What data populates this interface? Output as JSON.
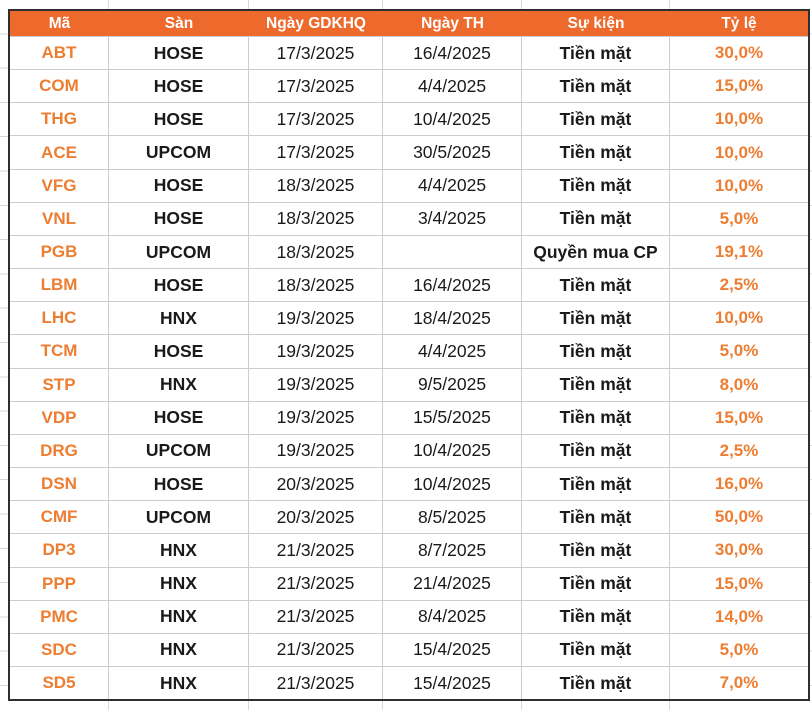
{
  "colors": {
    "header_bg": "#EE6A2C",
    "header_text": "#FFFFFF",
    "accent_text": "#ED7D31",
    "body_text": "#1A1A1A",
    "gridline": "#CCCCCC",
    "table_border": "#2F2F2F"
  },
  "table": {
    "columns": [
      {
        "key": "code",
        "label": "Mã"
      },
      {
        "key": "exchange",
        "label": "Sàn"
      },
      {
        "key": "ex_date",
        "label": "Ngày GDKHQ"
      },
      {
        "key": "exec_date",
        "label": "Ngày TH"
      },
      {
        "key": "event",
        "label": "Sự kiện"
      },
      {
        "key": "ratio",
        "label": "Tỷ lệ"
      }
    ],
    "rows": [
      {
        "code": "ABT",
        "exchange": "HOSE",
        "ex_date": "17/3/2025",
        "exec_date": "16/4/2025",
        "event": "Tiền mặt",
        "ratio": "30,0%"
      },
      {
        "code": "COM",
        "exchange": "HOSE",
        "ex_date": "17/3/2025",
        "exec_date": "4/4/2025",
        "event": "Tiền mặt",
        "ratio": "15,0%"
      },
      {
        "code": "THG",
        "exchange": "HOSE",
        "ex_date": "17/3/2025",
        "exec_date": "10/4/2025",
        "event": "Tiền mặt",
        "ratio": "10,0%"
      },
      {
        "code": "ACE",
        "exchange": "UPCOM",
        "ex_date": "17/3/2025",
        "exec_date": "30/5/2025",
        "event": "Tiền mặt",
        "ratio": "10,0%"
      },
      {
        "code": "VFG",
        "exchange": "HOSE",
        "ex_date": "18/3/2025",
        "exec_date": "4/4/2025",
        "event": "Tiền mặt",
        "ratio": "10,0%"
      },
      {
        "code": "VNL",
        "exchange": "HOSE",
        "ex_date": "18/3/2025",
        "exec_date": "3/4/2025",
        "event": "Tiền mặt",
        "ratio": "5,0%"
      },
      {
        "code": "PGB",
        "exchange": "UPCOM",
        "ex_date": "18/3/2025",
        "exec_date": "",
        "event": "Quyền mua CP",
        "ratio": "19,1%"
      },
      {
        "code": "LBM",
        "exchange": "HOSE",
        "ex_date": "18/3/2025",
        "exec_date": "16/4/2025",
        "event": "Tiền mặt",
        "ratio": "2,5%"
      },
      {
        "code": "LHC",
        "exchange": "HNX",
        "ex_date": "19/3/2025",
        "exec_date": "18/4/2025",
        "event": "Tiền mặt",
        "ratio": "10,0%"
      },
      {
        "code": "TCM",
        "exchange": "HOSE",
        "ex_date": "19/3/2025",
        "exec_date": "4/4/2025",
        "event": "Tiền mặt",
        "ratio": "5,0%"
      },
      {
        "code": "STP",
        "exchange": "HNX",
        "ex_date": "19/3/2025",
        "exec_date": "9/5/2025",
        "event": "Tiền mặt",
        "ratio": "8,0%"
      },
      {
        "code": "VDP",
        "exchange": "HOSE",
        "ex_date": "19/3/2025",
        "exec_date": "15/5/2025",
        "event": "Tiền mặt",
        "ratio": "15,0%"
      },
      {
        "code": "DRG",
        "exchange": "UPCOM",
        "ex_date": "19/3/2025",
        "exec_date": "10/4/2025",
        "event": "Tiền mặt",
        "ratio": "2,5%"
      },
      {
        "code": "DSN",
        "exchange": "HOSE",
        "ex_date": "20/3/2025",
        "exec_date": "10/4/2025",
        "event": "Tiền mặt",
        "ratio": "16,0%"
      },
      {
        "code": "CMF",
        "exchange": "UPCOM",
        "ex_date": "20/3/2025",
        "exec_date": "8/5/2025",
        "event": "Tiền mặt",
        "ratio": "50,0%"
      },
      {
        "code": "DP3",
        "exchange": "HNX",
        "ex_date": "21/3/2025",
        "exec_date": "8/7/2025",
        "event": "Tiền mặt",
        "ratio": "30,0%"
      },
      {
        "code": "PPP",
        "exchange": "HNX",
        "ex_date": "21/3/2025",
        "exec_date": "21/4/2025",
        "event": "Tiền mặt",
        "ratio": "15,0%"
      },
      {
        "code": "PMC",
        "exchange": "HNX",
        "ex_date": "21/3/2025",
        "exec_date": "8/4/2025",
        "event": "Tiền mặt",
        "ratio": "14,0%"
      },
      {
        "code": "SDC",
        "exchange": "HNX",
        "ex_date": "21/3/2025",
        "exec_date": "15/4/2025",
        "event": "Tiền mặt",
        "ratio": "5,0%"
      },
      {
        "code": "SD5",
        "exchange": "HNX",
        "ex_date": "21/3/2025",
        "exec_date": "15/4/2025",
        "event": "Tiền mặt",
        "ratio": "7,0%"
      }
    ]
  }
}
